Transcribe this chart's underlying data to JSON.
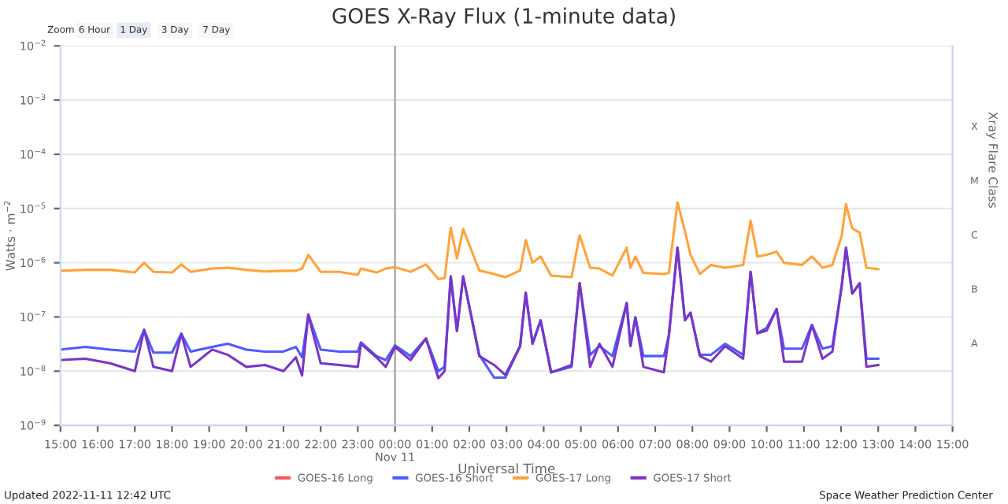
{
  "chart_data": {
    "type": "line",
    "title": "GOES X-Ray Flux (1-minute data)",
    "xlabel": "Universal Time",
    "ylabel": "Watts · m$^{−2}$",
    "y2label": "Xray Flare Class",
    "annotations": [
      "Zoom",
      "6 Hour",
      "1 Day",
      "3 Day",
      "7 Day",
      "Updated 2022-11-11 12:42 UTC",
      "Space Weather Prediction Center",
      "A",
      "B",
      "C",
      "M",
      "X"
    ],
    "x": [
      "2022-11-10T15:00",
      "2022-11-10T15:40",
      "2022-11-10T16:20",
      "2022-11-10T17:00",
      "2022-11-10T17:15",
      "2022-11-10T17:30",
      "2022-11-10T18:00",
      "2022-11-10T18:15",
      "2022-11-10T18:30",
      "2022-11-10T19:05",
      "2022-11-10T19:30",
      "2022-11-10T20:00",
      "2022-11-10T20:30",
      "2022-11-10T21:00",
      "2022-11-10T21:20",
      "2022-11-10T21:30",
      "2022-11-10T21:40",
      "2022-11-10T22:00",
      "2022-11-10T22:30",
      "2022-11-10T23:00",
      "2022-11-10T23:05",
      "2022-11-10T23:30",
      "2022-11-10T23:45",
      "2022-11-11T00:00",
      "2022-11-11T00:25",
      "2022-11-11T00:50",
      "2022-11-11T01:10",
      "2022-11-11T01:20",
      "2022-11-11T01:30",
      "2022-11-11T01:40",
      "2022-11-11T01:50",
      "2022-11-11T02:16",
      "2022-11-11T02:40",
      "2022-11-11T02:58",
      "2022-11-11T03:22",
      "2022-11-11T03:31",
      "2022-11-11T03:42",
      "2022-11-11T03:55",
      "2022-11-11T04:12",
      "2022-11-11T04:45",
      "2022-11-11T04:58",
      "2022-11-11T05:15",
      "2022-11-11T05:30",
      "2022-11-11T05:51",
      "2022-11-11T06:14",
      "2022-11-11T06:20",
      "2022-11-11T06:28",
      "2022-11-11T06:41",
      "2022-11-11T07:14",
      "2022-11-11T07:22",
      "2022-11-11T07:36",
      "2022-11-11T07:48",
      "2022-11-11T07:57",
      "2022-11-11T08:12",
      "2022-11-11T08:30",
      "2022-11-11T08:53",
      "2022-11-11T09:22",
      "2022-11-11T09:34",
      "2022-11-11T09:45",
      "2022-11-11T10:00",
      "2022-11-11T10:16",
      "2022-11-11T10:28",
      "2022-11-11T10:57",
      "2022-11-11T11:13",
      "2022-11-11T11:30",
      "2022-11-11T11:46",
      "2022-11-11T12:01",
      "2022-11-11T12:08",
      "2022-11-11T12:18",
      "2022-11-11T12:30",
      "2022-11-11T12:41",
      "2022-11-11T13:00"
    ],
    "series": [
      {
        "name": "GOES-16 Long",
        "color": "#f45b5b",
        "values": [
          null,
          null,
          null,
          null,
          null,
          null,
          null,
          null,
          null,
          null,
          null,
          null,
          null,
          null,
          null,
          null,
          null,
          null,
          null,
          null,
          null,
          null,
          null,
          null,
          null,
          null,
          null,
          null,
          null,
          null,
          null,
          null,
          null,
          null,
          null,
          null,
          null,
          null,
          null,
          null,
          null,
          null,
          null,
          null,
          null,
          null,
          null,
          null,
          null,
          null,
          null,
          null,
          null,
          null,
          null,
          null,
          null,
          null,
          null,
          null,
          null,
          null,
          null,
          null,
          null,
          null,
          null,
          null,
          null,
          null,
          null,
          null
        ]
      },
      {
        "name": "GOES-16 Short",
        "color": "#4d5bff",
        "values": [
          2.5e-08,
          2.8e-08,
          2.5e-08,
          2.3e-08,
          5.8e-08,
          2.2e-08,
          2.2e-08,
          4.9e-08,
          2.3e-08,
          2.8e-08,
          3.2e-08,
          2.5e-08,
          2.3e-08,
          2.3e-08,
          2.8e-08,
          1.8e-08,
          1.1e-07,
          2.5e-08,
          2.3e-08,
          2.3e-08,
          3.4e-08,
          1.9e-08,
          1.6e-08,
          3e-08,
          1.9e-08,
          4e-08,
          1e-08,
          1.2e-08,
          5.6e-07,
          5.5e-08,
          5.6e-07,
          2e-08,
          7.6e-09,
          7.6e-09,
          2.9e-08,
          2.8e-07,
          3.2e-08,
          8.7e-08,
          9.5e-09,
          1.2e-08,
          4.2e-07,
          2e-08,
          2.9e-08,
          1.9e-08,
          1.8e-07,
          2.9e-08,
          9.8e-08,
          1.9e-08,
          1.9e-08,
          4.5e-08,
          1.9e-06,
          8.7e-08,
          1.2e-07,
          2e-08,
          2e-08,
          3.2e-08,
          2e-08,
          6.8e-07,
          5e-08,
          6.3e-08,
          1.4e-07,
          2.6e-08,
          2.6e-08,
          7.1e-08,
          2.6e-08,
          2.9e-08,
          3.7e-07,
          1.9e-06,
          2.7e-07,
          4.2e-07,
          1.7e-08,
          1.7e-08
        ]
      },
      {
        "name": "GOES-17 Long",
        "color": "#ffa33a",
        "values": [
          7.1e-07,
          7.4e-07,
          7.4e-07,
          6.6e-07,
          1e-06,
          6.8e-07,
          6.6e-07,
          9.3e-07,
          6.8e-07,
          7.8e-07,
          8.1e-07,
          7.4e-07,
          6.9e-07,
          7.1e-07,
          7.1e-07,
          7.8e-07,
          1.4e-06,
          6.8e-07,
          6.8e-07,
          6e-07,
          7.8e-07,
          6.6e-07,
          7.8e-07,
          8.3e-07,
          6.8e-07,
          9.3e-07,
          5e-07,
          5.2e-07,
          4.4e-06,
          1.2e-06,
          4.2e-06,
          7.2e-07,
          6.2e-07,
          5.4e-07,
          7.2e-07,
          2.6e-06,
          1e-06,
          1.3e-06,
          5.8e-07,
          5.4e-07,
          3.2e-06,
          8.1e-07,
          7.8e-07,
          5.8e-07,
          1.9e-06,
          8.1e-07,
          1.3e-06,
          6.5e-07,
          6.2e-07,
          6.5e-07,
          1.3e-05,
          3.8e-06,
          1.4e-06,
          6.2e-07,
          9.1e-07,
          8.1e-07,
          9.1e-07,
          6e-06,
          1.3e-06,
          1.4e-06,
          1.6e-06,
          1e-06,
          9.1e-07,
          1.3e-06,
          8.1e-07,
          9.1e-07,
          3.1e-06,
          1.2e-05,
          4.3e-06,
          3.6e-06,
          8.1e-07,
          7.6e-07
        ]
      },
      {
        "name": "GOES-17 Short",
        "color": "#7a35c8",
        "values": [
          1.6e-08,
          1.7e-08,
          1.4e-08,
          1e-08,
          5.8e-08,
          1.2e-08,
          1e-08,
          4.9e-08,
          1.2e-08,
          2.5e-08,
          2e-08,
          1.2e-08,
          1.3e-08,
          1e-08,
          1.8e-08,
          8.3e-09,
          1.1e-07,
          1.4e-08,
          1.3e-08,
          1.2e-08,
          3.2e-08,
          1.8e-08,
          1.2e-08,
          2.8e-08,
          1.6e-08,
          4e-08,
          7.4e-09,
          1e-08,
          5.6e-07,
          5.5e-08,
          5.6e-07,
          1.9e-08,
          1.3e-08,
          8.5e-09,
          2.9e-08,
          2.8e-07,
          3.2e-08,
          8.7e-08,
          9.5e-09,
          1.3e-08,
          4.2e-07,
          1.2e-08,
          3.2e-08,
          1.2e-08,
          1.8e-07,
          2.9e-08,
          9.8e-08,
          1.2e-08,
          9.5e-09,
          4.5e-08,
          1.9e-06,
          8.7e-08,
          1.2e-07,
          1.9e-08,
          1.5e-08,
          2.9e-08,
          1.7e-08,
          6.8e-07,
          5e-08,
          5.6e-08,
          1.4e-07,
          1.5e-08,
          1.5e-08,
          7.1e-08,
          1.7e-08,
          2.3e-08,
          3.7e-07,
          1.9e-06,
          2.7e-07,
          4.2e-07,
          1.2e-08,
          1.3e-08
        ]
      }
    ],
    "log": "y",
    "xlim": [
      "2022-11-10T15:00",
      "2022-11-11T15:00"
    ],
    "xticks": [
      {
        "value": "2022-11-10T15:00",
        "label": "15:00"
      },
      {
        "value": "2022-11-10T16:00",
        "label": "16:00"
      },
      {
        "value": "2022-11-10T17:00",
        "label": "17:00"
      },
      {
        "value": "2022-11-10T18:00",
        "label": "18:00"
      },
      {
        "value": "2022-11-10T19:00",
        "label": "19:00"
      },
      {
        "value": "2022-11-10T20:00",
        "label": "20:00"
      },
      {
        "value": "2022-11-10T21:00",
        "label": "21:00"
      },
      {
        "value": "2022-11-10T22:00",
        "label": "22:00"
      },
      {
        "value": "2022-11-10T23:00",
        "label": "23:00"
      },
      {
        "value": "2022-11-11T00:00",
        "label": "00:00\nNov 11"
      },
      {
        "value": "2022-11-11T01:00",
        "label": "01:00"
      },
      {
        "value": "2022-11-11T02:00",
        "label": "02:00"
      },
      {
        "value": "2022-11-11T03:00",
        "label": "03:00"
      },
      {
        "value": "2022-11-11T04:00",
        "label": "04:00"
      },
      {
        "value": "2022-11-11T05:00",
        "label": "05:00"
      },
      {
        "value": "2022-11-11T06:00",
        "label": "06:00"
      },
      {
        "value": "2022-11-11T07:00",
        "label": "07:00"
      },
      {
        "value": "2022-11-11T08:00",
        "label": "08:00"
      },
      {
        "value": "2022-11-11T09:00",
        "label": "09:00"
      },
      {
        "value": "2022-11-11T10:00",
        "label": "10:00"
      },
      {
        "value": "2022-11-11T11:00",
        "label": "11:00"
      },
      {
        "value": "2022-11-11T12:00",
        "label": "12:00"
      },
      {
        "value": "2022-11-11T13:00",
        "label": "13:00"
      },
      {
        "value": "2022-11-11T14:00",
        "label": "14:00"
      },
      {
        "value": "2022-11-11T15:00",
        "label": "15:00"
      }
    ],
    "ylim": [
      1e-09,
      0.01
    ],
    "yticks": [
      {
        "value": 1e-09,
        "label": "10$^{−9}$"
      },
      {
        "value": 1e-08,
        "label": "10$^{−8}$"
      },
      {
        "value": 1e-07,
        "label": "10$^{−7}$"
      },
      {
        "value": 1e-06,
        "label": "10$^{−6}$"
      },
      {
        "value": 1e-05,
        "label": "10$^{−5}$"
      },
      {
        "value": 0.0001,
        "label": "10$^{−4}$"
      },
      {
        "value": 0.001,
        "label": "10$^{−3}$"
      },
      {
        "value": 0.01,
        "label": "10$^{−2}$"
      }
    ],
    "ref_lines": [
      {
        "axis": "x",
        "value": "2022-11-11T00:00",
        "color": "#aaaaaa"
      }
    ],
    "grid": "y",
    "legend": "bottom",
    "marker": "none",
    "line_style": "solid"
  }
}
